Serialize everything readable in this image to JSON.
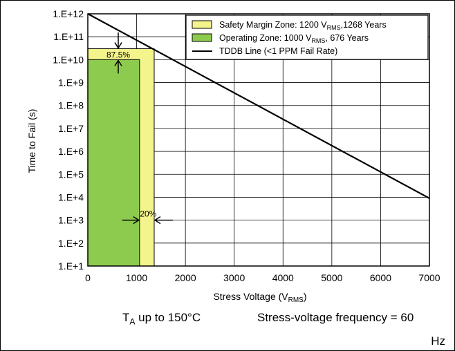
{
  "chart_data": {
    "type": "area",
    "ylabel": "Time to Fail (s)",
    "xlabel_main": "Stress Voltage (V",
    "xlabel_sub": "RMS",
    "xlabel_tail": ")",
    "xlim": [
      0,
      7000
    ],
    "x_ticks": [
      "0",
      "1000",
      "2000",
      "3000",
      "4000",
      "5000",
      "6000",
      "7000"
    ],
    "y_scale": "log",
    "ylim": [
      "1.E+1",
      "1.E+12"
    ],
    "y_ticks": [
      "1.E+1",
      "1.E+2",
      "1.E+3",
      "1.E+4",
      "1.E+5",
      "1.E+6",
      "1.E+7",
      "1.E+8",
      "1.E+9",
      "1.E+10",
      "1.E+11",
      "1.E+12"
    ],
    "grid": true,
    "legend_position": "top-right",
    "series": [
      {
        "legend_main": "Safety Margin Zone: 1200 V",
        "legend_sub": "RMS",
        "legend_tail": ",1268 Years",
        "kind": "zone",
        "x_range": [
          0,
          1360
        ],
        "y_top": 30000000000.0,
        "color": "#f4f48c"
      },
      {
        "legend_main": "Operating Zone: 1000 V",
        "legend_sub": "RMS",
        "legend_tail": ", 676 Years",
        "kind": "zone",
        "x_range": [
          0,
          1060
        ],
        "y_top": 10000000000.0,
        "color": "#8dcb4e"
      },
      {
        "legend_main": "TDDB Line (<1 PPM Fail Rate)",
        "kind": "line",
        "x": [
          0,
          7000
        ],
        "y": [
          1000000000000.0,
          9000.0
        ],
        "color": "#000000"
      }
    ],
    "annotations": [
      "87.5%",
      "20%"
    ]
  },
  "conditions": {
    "temp_main": "T",
    "temp_sub": "A",
    "temp_tail": " up to 150°C",
    "freq_line1": "Stress-voltage frequency = 60",
    "freq_line2": "Hz"
  }
}
